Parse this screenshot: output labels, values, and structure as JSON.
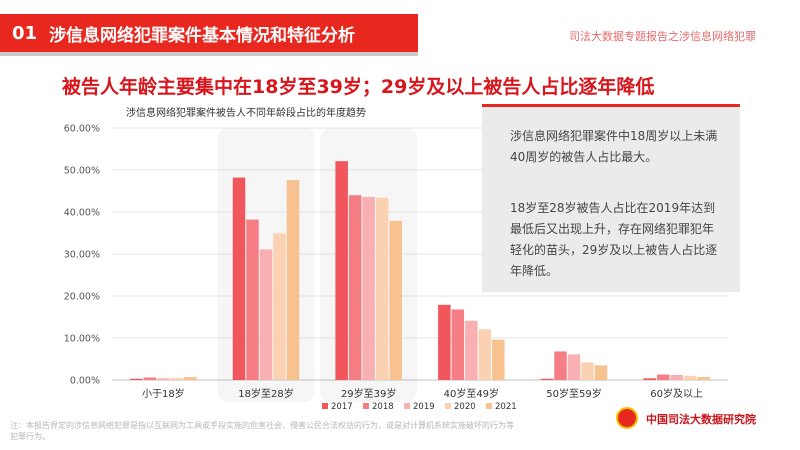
{
  "header": {
    "number": "01",
    "title": "涉信息网络犯罪案件基本情况和特征分析",
    "top_right": "司法大数据专题报告之涉信息网络犯罪"
  },
  "subtitle": "被告人年龄主要集中在18岁至39岁；29岁及以上被告人占比逐年降低",
  "side_text": {
    "p1": "涉信息网络犯罪案件中18周岁以上未满40周岁的被告人占比最大。",
    "p2": "18岁至28岁被告人占比在2019年达到最低后又出现上升，存在网络犯罪犯年轻化的苗头，29岁及以上被告人占比逐年降低。"
  },
  "footer": {
    "note": "注：本报告界定的涉信息网络犯罪是指以互联网为工具或手段实施的危害社会、侵害公民合法权益的行为，或是对计算机系统实施破坏的行为等犯罪行为。",
    "org": "中国司法大数据研究院"
  },
  "chart_data": {
    "type": "bar",
    "title": "涉信息网络犯罪案件被告人不同年龄段占比的年度趋势",
    "categories": [
      "小于18岁",
      "18岁至28岁",
      "29岁至39岁",
      "40岁至49岁",
      "50岁至59岁",
      "60岁及以上"
    ],
    "y_ticks": [
      "0.00%",
      "10.00%",
      "20.00%",
      "30.00%",
      "40.00%",
      "50.00%",
      "60.00%"
    ],
    "ylim": [
      0,
      60
    ],
    "highlighted_categories": [
      1,
      2
    ],
    "legend_position": "bottom",
    "series": [
      {
        "name": "2017",
        "color": "#f0565c",
        "values": [
          0.3,
          48.2,
          52.1,
          17.9,
          0.3,
          0.4
        ]
      },
      {
        "name": "2018",
        "color": "#f47e84",
        "values": [
          0.6,
          38.2,
          44.0,
          16.8,
          6.8,
          1.3
        ]
      },
      {
        "name": "2019",
        "color": "#f8b0b3",
        "values": [
          0.4,
          31.1,
          43.6,
          14.1,
          6.1,
          1.2
        ]
      },
      {
        "name": "2020",
        "color": "#fad2b2",
        "values": [
          0.5,
          34.9,
          43.4,
          12.1,
          4.2,
          1.0
        ]
      },
      {
        "name": "2021",
        "color": "#f8c290",
        "values": [
          0.7,
          47.6,
          37.9,
          9.6,
          3.5,
          0.7
        ]
      }
    ]
  }
}
